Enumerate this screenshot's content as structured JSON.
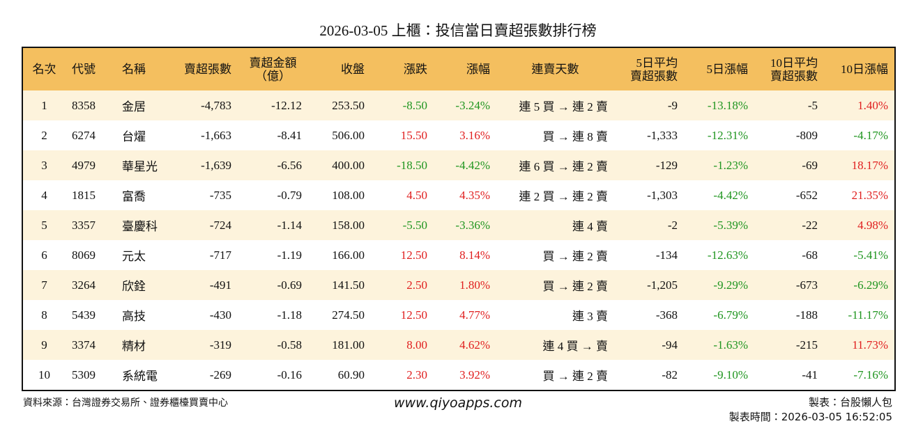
{
  "header": {
    "title": "2026-03-05 上櫃：投信當日賣超張數排行榜"
  },
  "table": {
    "columns": [
      [
        "名次"
      ],
      [
        "代號"
      ],
      [
        "名稱"
      ],
      [
        "賣超張數"
      ],
      [
        "賣超金額",
        "（億）"
      ],
      [
        "收盤"
      ],
      [
        "漲跌"
      ],
      [
        "漲幅"
      ],
      [
        "連賣天數"
      ],
      [
        "5日平均",
        "賣超張數"
      ],
      [
        "5日漲幅"
      ],
      [
        "10日平均",
        "賣超張數"
      ],
      [
        "10日漲幅"
      ]
    ],
    "rows": [
      [
        "1",
        "8358",
        "金居",
        "-4,783",
        "-12.12",
        "253.50",
        "-8.50",
        "-3.24%",
        "連 5 買 → 連 2 賣",
        "-9",
        "-13.18%",
        "-5",
        "1.40%"
      ],
      [
        "2",
        "6274",
        "台燿",
        "-1,663",
        "-8.41",
        "506.00",
        "15.50",
        "3.16%",
        "買 → 連 8 賣",
        "-1,333",
        "-12.31%",
        "-809",
        "-4.17%"
      ],
      [
        "3",
        "4979",
        "華星光",
        "-1,639",
        "-6.56",
        "400.00",
        "-18.50",
        "-4.42%",
        "連 6 買 → 連 2 賣",
        "-129",
        "-1.23%",
        "-69",
        "18.17%"
      ],
      [
        "4",
        "1815",
        "富喬",
        "-735",
        "-0.79",
        "108.00",
        "4.50",
        "4.35%",
        "連 2 買 → 連 2 賣",
        "-1,303",
        "-4.42%",
        "-652",
        "21.35%"
      ],
      [
        "5",
        "3357",
        "臺慶科",
        "-724",
        "-1.14",
        "158.00",
        "-5.50",
        "-3.36%",
        "連 4 賣",
        "-2",
        "-5.39%",
        "-22",
        "4.98%"
      ],
      [
        "6",
        "8069",
        "元太",
        "-717",
        "-1.19",
        "166.00",
        "12.50",
        "8.14%",
        "買 → 連 2 賣",
        "-134",
        "-12.63%",
        "-68",
        "-5.41%"
      ],
      [
        "7",
        "3264",
        "欣銓",
        "-491",
        "-0.69",
        "141.50",
        "2.50",
        "1.80%",
        "買 → 連 2 賣",
        "-1,205",
        "-9.29%",
        "-673",
        "-6.29%"
      ],
      [
        "8",
        "5439",
        "高技",
        "-430",
        "-1.18",
        "274.50",
        "12.50",
        "4.77%",
        "連 3 賣",
        "-368",
        "-6.79%",
        "-188",
        "-11.17%"
      ],
      [
        "9",
        "3374",
        "精材",
        "-319",
        "-0.58",
        "181.00",
        "8.00",
        "4.62%",
        "連 4 買 → 賣",
        "-94",
        "-1.63%",
        "-215",
        "11.73%"
      ],
      [
        "10",
        "5309",
        "系統電",
        "-269",
        "-0.16",
        "60.90",
        "2.30",
        "3.92%",
        "買 → 連 2 賣",
        "-82",
        "-9.10%",
        "-41",
        "-7.16%"
      ]
    ]
  },
  "footer": {
    "source": "資料來源：台灣證券交易所、證券櫃檯買賣中心",
    "site": "www.qiyoapps.com",
    "author": "製表：台股懶人包",
    "time": "製表時間：2026-03-05 16:52:05"
  }
}
